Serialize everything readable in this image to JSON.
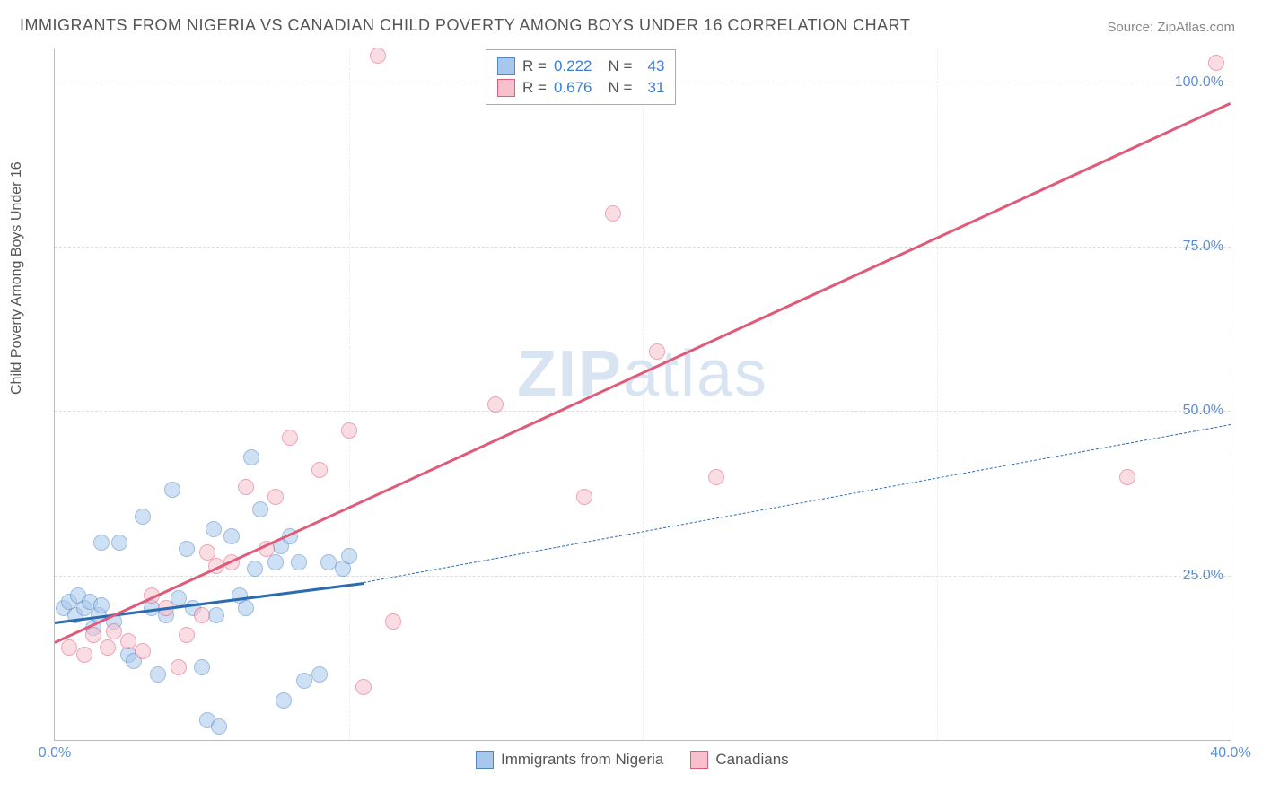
{
  "title": "IMMIGRANTS FROM NIGERIA VS CANADIAN CHILD POVERTY AMONG BOYS UNDER 16 CORRELATION CHART",
  "source": "Source: ZipAtlas.com",
  "ylabel": "Child Poverty Among Boys Under 16",
  "watermark_bold": "ZIP",
  "watermark_thin": "atlas",
  "chart": {
    "type": "scatter",
    "xlim": [
      0,
      40
    ],
    "ylim": [
      0,
      105
    ],
    "xtick_labels": {
      "0": "0.0%",
      "40": "40.0%"
    },
    "ytick_labels": {
      "25": "25.0%",
      "50": "50.0%",
      "75": "75.0%",
      "100": "100.0%"
    },
    "y_gridlines": [
      25,
      50,
      75,
      100
    ],
    "x_gridlines": [
      10,
      20,
      30,
      40
    ],
    "background_color": "#ffffff",
    "grid_color": "#dddddd",
    "marker_radius": 9,
    "marker_border_width": 1.5,
    "series": [
      {
        "key": "nigeria",
        "label": "Immigrants from Nigeria",
        "fill_color": "#a7c8ec",
        "border_color": "#4f86c6",
        "fill_opacity": 0.55,
        "r_value": "0.222",
        "n_value": "43",
        "trend": {
          "x1": 0,
          "y1": 18,
          "x2": 10.5,
          "y2": 24,
          "color": "#2b6cb0",
          "width": 3,
          "dash": false
        },
        "trend_ext": {
          "x1": 10.5,
          "y1": 24,
          "x2": 40,
          "y2": 48,
          "color": "#2b6cb0",
          "width": 1.5,
          "dash": true
        },
        "points": [
          [
            0.3,
            20
          ],
          [
            0.5,
            21
          ],
          [
            0.7,
            19
          ],
          [
            0.8,
            22
          ],
          [
            1.0,
            20
          ],
          [
            1.2,
            21
          ],
          [
            1.3,
            17
          ],
          [
            1.5,
            19
          ],
          [
            1.6,
            20.5
          ],
          [
            1.6,
            30
          ],
          [
            2.0,
            18
          ],
          [
            2.2,
            30
          ],
          [
            2.5,
            13
          ],
          [
            2.7,
            12
          ],
          [
            3.0,
            34
          ],
          [
            3.3,
            20
          ],
          [
            3.5,
            10
          ],
          [
            3.8,
            19
          ],
          [
            4.0,
            38
          ],
          [
            4.2,
            21.5
          ],
          [
            4.5,
            29
          ],
          [
            4.7,
            20
          ],
          [
            5.0,
            11
          ],
          [
            5.2,
            3
          ],
          [
            5.4,
            32
          ],
          [
            5.5,
            19
          ],
          [
            5.6,
            2
          ],
          [
            6.0,
            31
          ],
          [
            6.3,
            22
          ],
          [
            6.5,
            20
          ],
          [
            6.7,
            43
          ],
          [
            6.8,
            26
          ],
          [
            7.0,
            35
          ],
          [
            7.5,
            27
          ],
          [
            7.7,
            29.5
          ],
          [
            7.8,
            6
          ],
          [
            8.0,
            31
          ],
          [
            8.3,
            27
          ],
          [
            8.5,
            9
          ],
          [
            9.0,
            10
          ],
          [
            9.3,
            27
          ],
          [
            9.8,
            26
          ],
          [
            10.0,
            28
          ]
        ]
      },
      {
        "key": "canadians",
        "label": "Canadians",
        "fill_color": "#f6c1cd",
        "border_color": "#e05a7a",
        "fill_opacity": 0.55,
        "r_value": "0.676",
        "n_value": "31",
        "trend": {
          "x1": 0,
          "y1": 15,
          "x2": 40,
          "y2": 97,
          "color": "#e05a7a",
          "width": 3,
          "dash": false
        },
        "points": [
          [
            0.5,
            14
          ],
          [
            1.0,
            13
          ],
          [
            1.3,
            16
          ],
          [
            1.8,
            14
          ],
          [
            2.0,
            16.5
          ],
          [
            2.5,
            15
          ],
          [
            3.0,
            13.5
          ],
          [
            3.3,
            22
          ],
          [
            3.8,
            20
          ],
          [
            4.2,
            11
          ],
          [
            4.5,
            16
          ],
          [
            5.0,
            19
          ],
          [
            5.2,
            28.5
          ],
          [
            5.5,
            26.5
          ],
          [
            6.0,
            27
          ],
          [
            6.5,
            38.5
          ],
          [
            7.2,
            29
          ],
          [
            7.5,
            37
          ],
          [
            8.0,
            46
          ],
          [
            9.0,
            41
          ],
          [
            10.0,
            47
          ],
          [
            10.5,
            8
          ],
          [
            11.0,
            104
          ],
          [
            11.5,
            18
          ],
          [
            15.0,
            51
          ],
          [
            18.0,
            37
          ],
          [
            19.0,
            80
          ],
          [
            20.5,
            59
          ],
          [
            22.5,
            40
          ],
          [
            36.5,
            40
          ],
          [
            39.5,
            103
          ]
        ]
      }
    ],
    "stats_box": {
      "r_label": "R =",
      "n_label": "N =",
      "value_color": "#3b7dd8",
      "label_color": "#555555"
    }
  }
}
